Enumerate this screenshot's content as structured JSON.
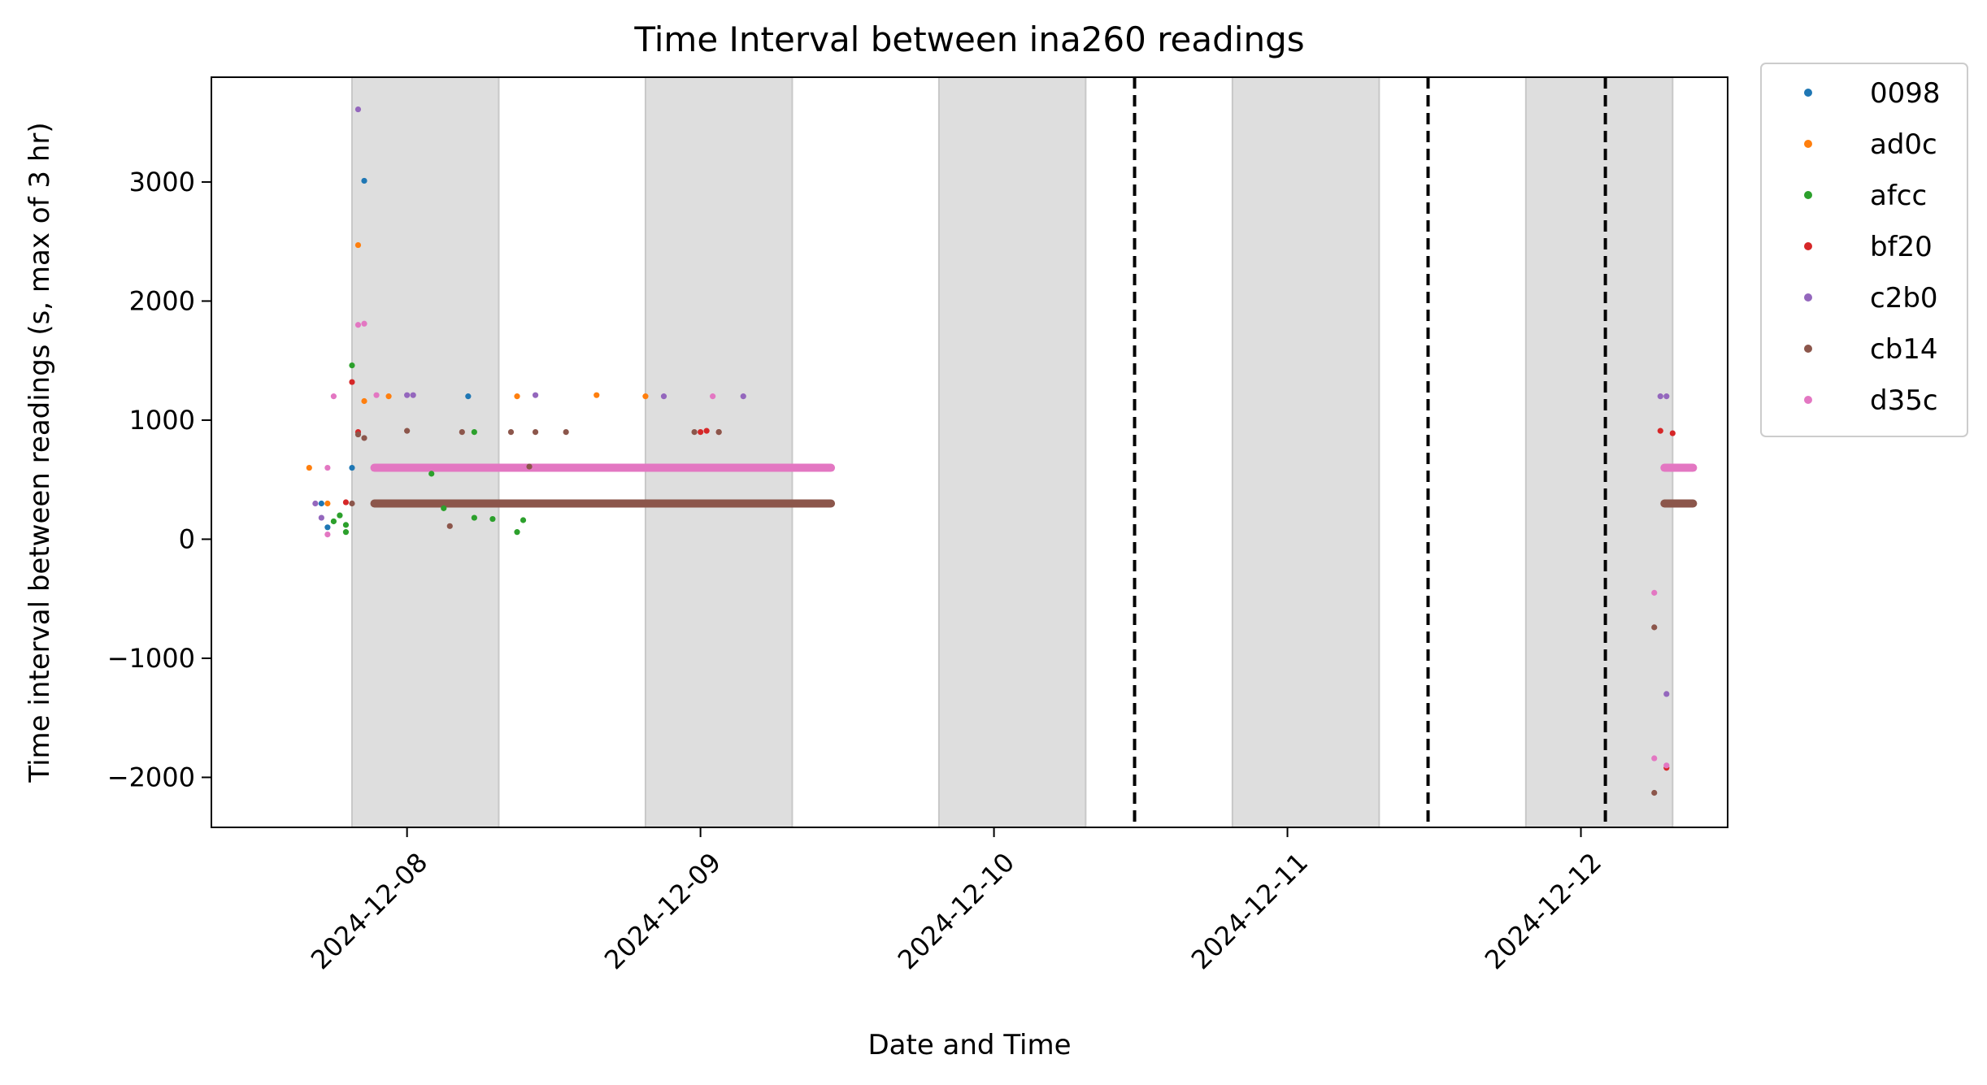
{
  "chart_data": {
    "type": "scatter",
    "title": "Time Interval between ina260 readings",
    "xlabel": "Date and Time",
    "ylabel": "Time interval between readings (s, max of 3 hr)",
    "xlim": [
      "2024-12-07T08:00",
      "2024-12-12T12:00"
    ],
    "ylim": [
      -2420,
      3880
    ],
    "x_ticks": [
      "2024-12-08",
      "2024-12-09",
      "2024-12-10",
      "2024-12-11",
      "2024-12-12"
    ],
    "y_ticks": [
      "−2000",
      "−1000",
      "0",
      "1000",
      "2000",
      "3000"
    ],
    "y_tick_values": [
      -2000,
      -1000,
      0,
      1000,
      2000,
      3000
    ],
    "shaded_regions": [
      [
        "2024-12-07T19:30",
        "2024-12-08T07:30"
      ],
      [
        "2024-12-08T19:30",
        "2024-12-09T07:30"
      ],
      [
        "2024-12-09T19:30",
        "2024-12-10T07:30"
      ],
      [
        "2024-12-10T19:30",
        "2024-12-11T07:30"
      ],
      [
        "2024-12-11T19:30",
        "2024-12-12T07:30"
      ]
    ],
    "shaded_color": "#dedede",
    "vertical_lines": [
      "2024-12-10T11:30",
      "2024-12-11T11:30",
      "2024-12-12T02:00"
    ],
    "legend_position": "outside-right",
    "grid": false,
    "dense_bands": [
      {
        "series": "d35c",
        "y": 600,
        "from": "2024-12-07T21:00",
        "to": "2024-12-09T11:00"
      },
      {
        "series": "cb14",
        "y": 300,
        "from": "2024-12-07T21:00",
        "to": "2024-12-09T11:00"
      },
      {
        "series": "d35c",
        "y": 600,
        "from": "2024-12-12T06:30",
        "to": "2024-12-12T09:30"
      },
      {
        "series": "cb14",
        "y": 300,
        "from": "2024-12-12T06:30",
        "to": "2024-12-12T09:30"
      }
    ],
    "series": [
      {
        "name": "0098",
        "color": "#1f77b4",
        "points": [
          [
            "2024-12-07T20:30",
            3010
          ],
          [
            "2024-12-07T17:30",
            100
          ],
          [
            "2024-12-07T17:00",
            300
          ],
          [
            "2024-12-08T05:00",
            1200
          ],
          [
            "2024-12-07T19:30",
            600
          ]
        ]
      },
      {
        "name": "ad0c",
        "color": "#ff7f0e",
        "points": [
          [
            "2024-12-07T20:00",
            2470
          ],
          [
            "2024-12-07T20:30",
            1160
          ],
          [
            "2024-12-07T22:30",
            1200
          ],
          [
            "2024-12-08T09:00",
            1200
          ],
          [
            "2024-12-08T15:30",
            1210
          ],
          [
            "2024-12-08T19:30",
            1200
          ],
          [
            "2024-12-07T16:00",
            600
          ],
          [
            "2024-12-07T17:30",
            300
          ]
        ]
      },
      {
        "name": "afcc",
        "color": "#2ca02c",
        "points": [
          [
            "2024-12-07T19:30",
            1460
          ],
          [
            "2024-12-07T18:30",
            200
          ],
          [
            "2024-12-07T19:00",
            120
          ],
          [
            "2024-12-07T19:00",
            60
          ],
          [
            "2024-12-07T18:00",
            150
          ],
          [
            "2024-12-08T05:30",
            900
          ],
          [
            "2024-12-08T02:00",
            550
          ],
          [
            "2024-12-08T07:00",
            170
          ],
          [
            "2024-12-08T09:30",
            160
          ],
          [
            "2024-12-08T09:00",
            60
          ],
          [
            "2024-12-08T05:30",
            180
          ],
          [
            "2024-12-08T03:00",
            260
          ]
        ]
      },
      {
        "name": "bf20",
        "color": "#d62728",
        "points": [
          [
            "2024-12-07T19:30",
            1320
          ],
          [
            "2024-12-07T20:00",
            900
          ],
          [
            "2024-12-09T00:00",
            900
          ],
          [
            "2024-12-09T00:30",
            910
          ],
          [
            "2024-12-09T01:30",
            900
          ],
          [
            "2024-12-12T06:30",
            910
          ],
          [
            "2024-12-12T07:30",
            890
          ],
          [
            "2024-12-12T07:00",
            -1920
          ],
          [
            "2024-12-07T19:00",
            310
          ]
        ]
      },
      {
        "name": "c2b0",
        "color": "#9467bd",
        "points": [
          [
            "2024-12-07T20:00",
            3610
          ],
          [
            "2024-12-08T00:00",
            1210
          ],
          [
            "2024-12-08T00:30",
            1210
          ],
          [
            "2024-12-08T10:30",
            1210
          ],
          [
            "2024-12-08T21:00",
            1200
          ],
          [
            "2024-12-09T03:30",
            1200
          ],
          [
            "2024-12-12T06:30",
            1200
          ],
          [
            "2024-12-12T07:00",
            1200
          ],
          [
            "2024-12-12T07:00",
            -1300
          ],
          [
            "2024-12-07T17:00",
            180
          ],
          [
            "2024-12-07T16:30",
            300
          ]
        ]
      },
      {
        "name": "cb14",
        "color": "#8c564b",
        "points": [
          [
            "2024-12-07T20:30",
            850
          ],
          [
            "2024-12-07T20:00",
            880
          ],
          [
            "2024-12-08T00:00",
            910
          ],
          [
            "2024-12-08T03:30",
            110
          ],
          [
            "2024-12-08T04:30",
            900
          ],
          [
            "2024-12-08T10:30",
            900
          ],
          [
            "2024-12-08T13:00",
            900
          ],
          [
            "2024-12-08T23:30",
            900
          ],
          [
            "2024-12-08T08:30",
            900
          ],
          [
            "2024-12-08T10:00",
            610
          ],
          [
            "2024-12-09T01:30",
            900
          ],
          [
            "2024-12-12T06:00",
            -740
          ],
          [
            "2024-12-12T06:00",
            -2130
          ],
          [
            "2024-12-07T19:30",
            300
          ]
        ]
      },
      {
        "name": "d35c",
        "color": "#e377c2",
        "points": [
          [
            "2024-12-07T18:00",
            1200
          ],
          [
            "2024-12-07T20:30",
            1810
          ],
          [
            "2024-12-07T20:00",
            1800
          ],
          [
            "2024-12-08T09:00",
            610
          ],
          [
            "2024-12-09T01:00",
            1200
          ],
          [
            "2024-12-07T21:30",
            1210
          ],
          [
            "2024-12-07T17:30",
            40
          ],
          [
            "2024-12-07T17:30",
            600
          ],
          [
            "2024-12-12T06:00",
            -450
          ],
          [
            "2024-12-12T06:00",
            -1840
          ],
          [
            "2024-12-12T07:00",
            -1900
          ]
        ]
      }
    ]
  }
}
